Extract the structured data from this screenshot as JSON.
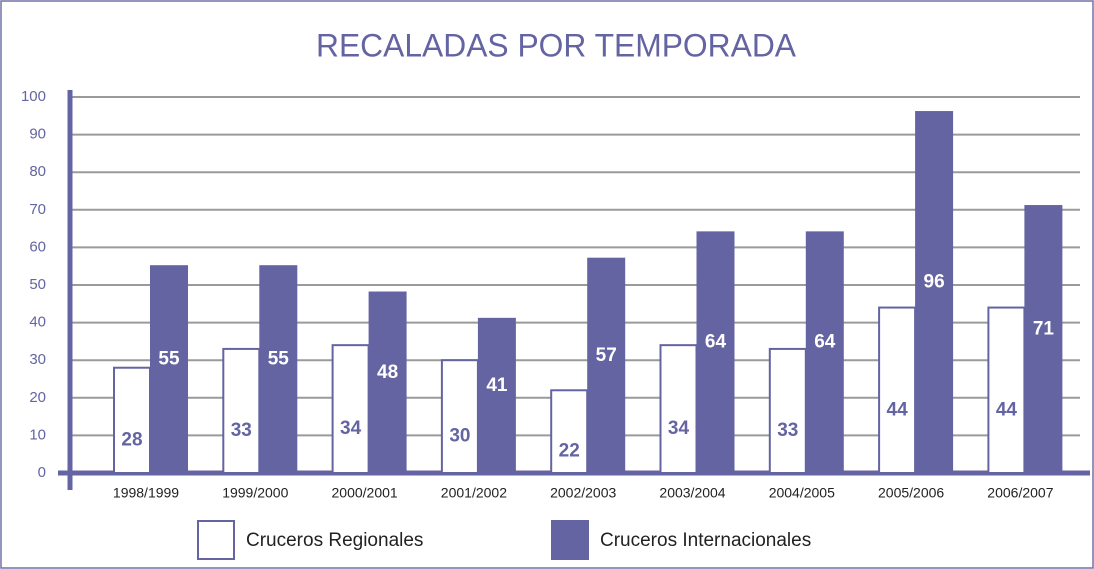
{
  "chart_data": {
    "type": "bar",
    "title": "RECALADAS POR TEMPORADA",
    "categories": [
      "1998/1999",
      "1999/2000",
      "2000/2001",
      "2001/2002",
      "2002/2003",
      "2003/2004",
      "2004/2005",
      "2005/2006",
      "2006/2007"
    ],
    "series": [
      {
        "name": "Cruceros Regionales",
        "color": "#ffffff",
        "values": [
          28,
          33,
          34,
          30,
          22,
          34,
          33,
          44,
          44
        ]
      },
      {
        "name": "Cruceros Internacionales",
        "color": "#6464a2",
        "values": [
          55,
          55,
          48,
          41,
          57,
          64,
          64,
          96,
          71
        ]
      }
    ],
    "ylim": [
      0,
      100
    ],
    "yticks": [
      0,
      10,
      20,
      30,
      40,
      50,
      60,
      70,
      80,
      90,
      100
    ],
    "grid": true
  }
}
